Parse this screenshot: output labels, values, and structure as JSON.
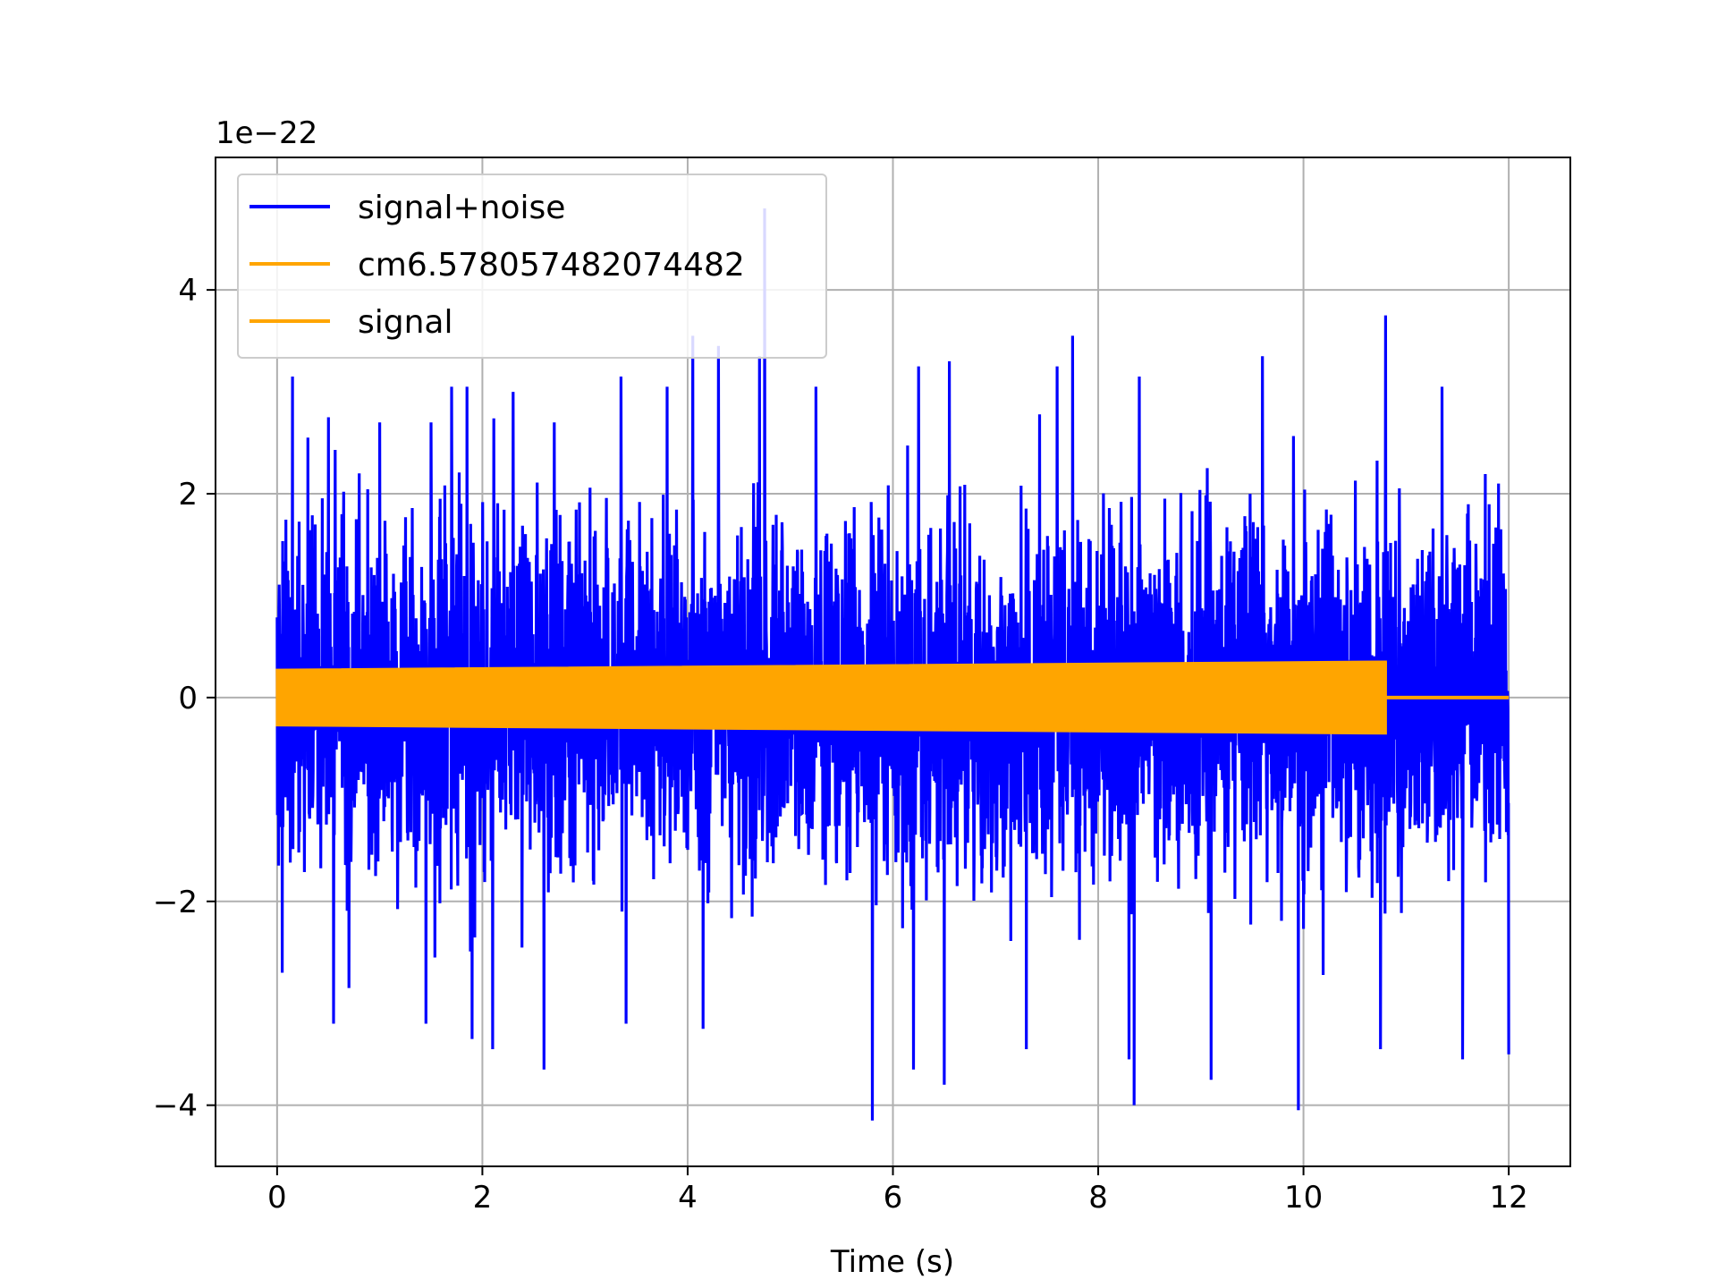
{
  "chart_data": {
    "type": "line",
    "xlabel": "Time (s)",
    "ylabel": "",
    "y_offset_label": "1e−22",
    "y_scale_factor": 1e-22,
    "xlim": [
      -0.6,
      12.6
    ],
    "ylim": [
      -4.6,
      5.3
    ],
    "x_ticks": [
      0,
      2,
      4,
      6,
      8,
      10,
      12
    ],
    "x_tick_labels": [
      "0",
      "2",
      "4",
      "6",
      "8",
      "10",
      "12"
    ],
    "y_ticks": [
      -4,
      -2,
      0,
      2,
      4
    ],
    "y_tick_labels": [
      "−4",
      "−2",
      "0",
      "2",
      "4"
    ],
    "grid": true,
    "legend_position": "upper-left",
    "legend": [
      "signal+noise",
      "cm6.578057482074482",
      "signal"
    ],
    "series": [
      {
        "name": "signal+noise",
        "color": "#0000ff",
        "x_range": [
          0,
          12
        ],
        "description_stats": {
          "typical_envelope": [
            -2.4,
            2.4
          ]
        },
        "peaks": [
          {
            "x": 0.05,
            "y": 2.3
          },
          {
            "x": 0.15,
            "y": 3.15
          },
          {
            "x": 0.3,
            "y": 2.55
          },
          {
            "x": 0.5,
            "y": 2.75
          },
          {
            "x": 0.8,
            "y": 2.2
          },
          {
            "x": 1.0,
            "y": 2.7
          },
          {
            "x": 1.5,
            "y": 2.7
          },
          {
            "x": 1.7,
            "y": 3.05
          },
          {
            "x": 1.85,
            "y": 3.05
          },
          {
            "x": 2.3,
            "y": 3.0
          },
          {
            "x": 2.7,
            "y": 2.7
          },
          {
            "x": 3.35,
            "y": 3.15
          },
          {
            "x": 3.8,
            "y": 3.05
          },
          {
            "x": 4.05,
            "y": 3.55
          },
          {
            "x": 4.3,
            "y": 3.45
          },
          {
            "x": 4.7,
            "y": 3.35
          },
          {
            "x": 4.75,
            "y": 4.8
          },
          {
            "x": 5.25,
            "y": 3.05
          },
          {
            "x": 6.25,
            "y": 3.25
          },
          {
            "x": 6.55,
            "y": 3.3
          },
          {
            "x": 7.6,
            "y": 3.25
          },
          {
            "x": 7.75,
            "y": 3.55
          },
          {
            "x": 8.4,
            "y": 3.15
          },
          {
            "x": 9.1,
            "y": 3.5
          },
          {
            "x": 9.6,
            "y": 3.35
          },
          {
            "x": 10.8,
            "y": 3.75
          },
          {
            "x": 11.35,
            "y": 3.05
          },
          {
            "x": 11.9,
            "y": 2.1
          }
        ],
        "troughs": [
          {
            "x": 0.05,
            "y": -2.7
          },
          {
            "x": 0.55,
            "y": -3.2
          },
          {
            "x": 0.7,
            "y": -2.85
          },
          {
            "x": 1.45,
            "y": -3.2
          },
          {
            "x": 1.9,
            "y": -3.35
          },
          {
            "x": 2.1,
            "y": -3.45
          },
          {
            "x": 2.6,
            "y": -3.65
          },
          {
            "x": 3.4,
            "y": -3.2
          },
          {
            "x": 4.15,
            "y": -3.25
          },
          {
            "x": 5.8,
            "y": -4.15
          },
          {
            "x": 6.2,
            "y": -3.65
          },
          {
            "x": 6.5,
            "y": -3.8
          },
          {
            "x": 7.3,
            "y": -3.45
          },
          {
            "x": 8.3,
            "y": -3.55
          },
          {
            "x": 8.35,
            "y": -4.0
          },
          {
            "x": 9.1,
            "y": -3.75
          },
          {
            "x": 9.95,
            "y": -4.05
          },
          {
            "x": 10.75,
            "y": -3.45
          },
          {
            "x": 11.55,
            "y": -3.55
          },
          {
            "x": 12.0,
            "y": -3.5
          }
        ]
      },
      {
        "name": "cm6.578057482074482",
        "color": "#ffa500",
        "x_range": [
          0,
          10.8
        ],
        "amplitude_start": 0.27,
        "amplitude_end": 0.35
      },
      {
        "name": "signal",
        "color": "#ffa500",
        "x_range": [
          0,
          12
        ],
        "segments": [
          {
            "x_range": [
              0,
              10.8
            ],
            "amplitude_start": 0.27,
            "amplitude_end": 0.35
          },
          {
            "x_range": [
              10.8,
              12
            ],
            "value": 0
          }
        ]
      }
    ]
  }
}
